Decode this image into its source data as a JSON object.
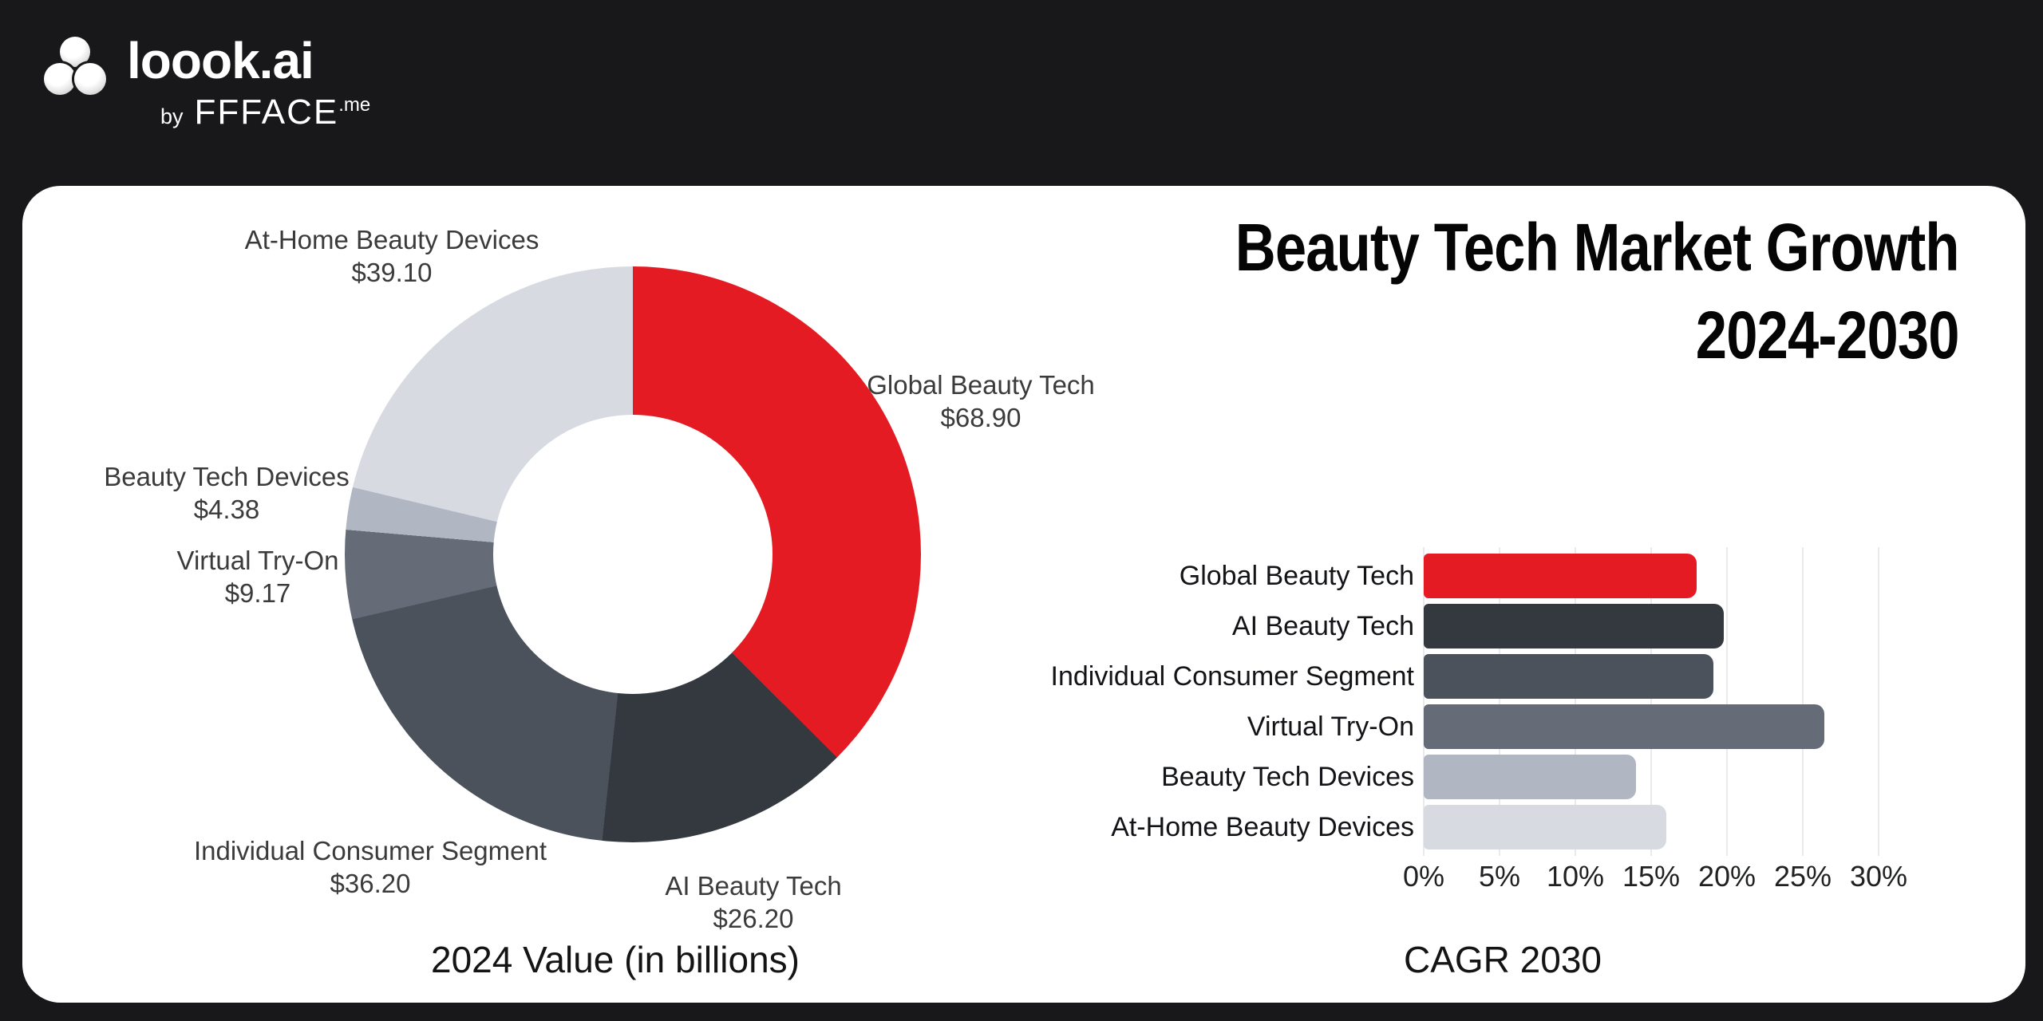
{
  "background_color": "#18181a",
  "card_color": "#ffffff",
  "brand": {
    "logo_text": "loook.ai",
    "byline_prefix": "by",
    "byline_name": "FFFACE",
    "byline_tld": ".me"
  },
  "title": {
    "line1": "Beauty Tech Market Growth",
    "line2": "2024-2030"
  },
  "palette": {
    "global": "#e41b22",
    "ai": "#343940",
    "individual": "#4c525c",
    "virtual": "#656b77",
    "devices": "#b0b6c2",
    "athome": "#d7dae1",
    "gridline": "#e9eaed"
  },
  "chart_data": [
    {
      "type": "pie",
      "variant": "donut",
      "caption": "2024 Value (in billions)",
      "unit": "USD billions",
      "start_angle_deg": 0,
      "direction": "clockwise",
      "inner_radius_ratio": 0.48,
      "labels": [
        "Global Beauty Tech",
        "AI Beauty Tech",
        "Individual Consumer Segment",
        "Virtual Try-On",
        "Beauty Tech Devices",
        "At-Home Beauty Devices"
      ],
      "values": [
        68.9,
        26.2,
        36.2,
        9.17,
        4.38,
        39.1
      ],
      "value_labels": [
        "$68.90",
        "$26.20",
        "$36.20",
        "$9.17",
        "$4.38",
        "$39.10"
      ],
      "colors": [
        "global",
        "ai",
        "individual",
        "virtual",
        "devices",
        "athome"
      ]
    },
    {
      "type": "bar",
      "orientation": "horizontal",
      "caption": "CAGR 2030",
      "categories": [
        "Global Beauty Tech",
        "AI Beauty Tech",
        "Individual Consumer Segment",
        "Virtual Try-On",
        "Beauty Tech Devices",
        "At-Home Beauty Devices"
      ],
      "values": [
        18.0,
        19.8,
        19.1,
        26.4,
        14.0,
        16.0
      ],
      "value_suffix": "%",
      "xlim": [
        0,
        30
      ],
      "xticks": [
        "0%",
        "5%",
        "10%",
        "15%",
        "20%",
        "25%",
        "30%"
      ],
      "xtick_values": [
        0,
        5,
        10,
        15,
        20,
        25,
        30
      ],
      "grid": true,
      "legend": false,
      "colors": [
        "global",
        "ai",
        "individual",
        "virtual",
        "devices",
        "athome"
      ]
    }
  ]
}
